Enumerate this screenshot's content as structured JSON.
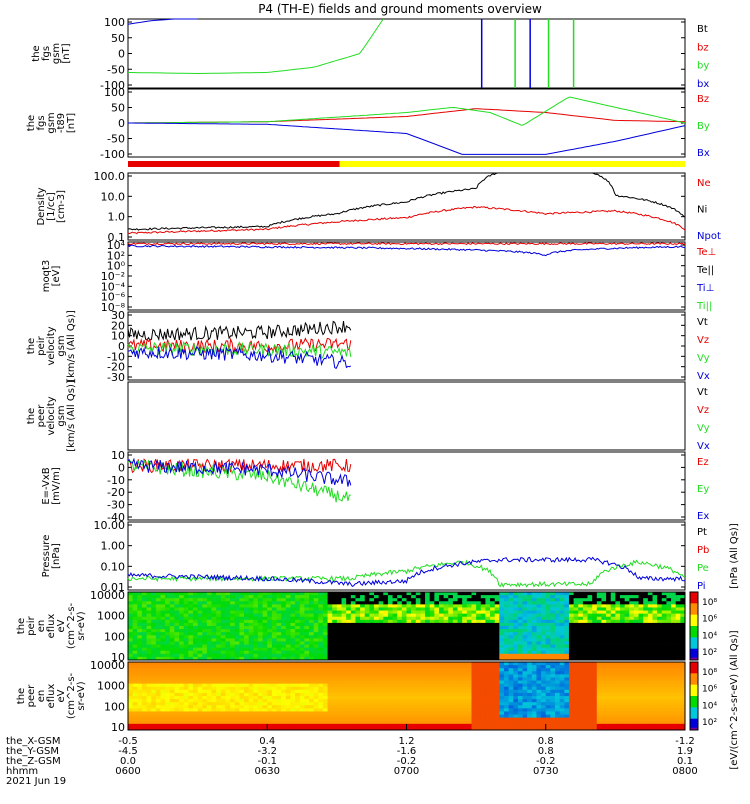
{
  "title": "P4 (TH-E) fields and ground moments overview",
  "colors": {
    "black": "#000000",
    "red": "#e60000",
    "green": "#22dd22",
    "blue": "#0000dd",
    "yellow": "#ffff00"
  },
  "panels": [
    {
      "id": "fgs",
      "ylabel_lines": [
        "the",
        "fgs",
        "gsm",
        "[nT]"
      ],
      "ticks": [
        "100",
        "50",
        "0",
        "-50",
        "-100"
      ],
      "legend": [
        {
          "text": "Bt",
          "color": "#000000"
        },
        {
          "text": "bz",
          "color": "#e60000"
        },
        {
          "text": "by",
          "color": "#22dd22"
        },
        {
          "text": "bx",
          "color": "#0000dd"
        }
      ]
    },
    {
      "id": "t89",
      "ylabel_lines": [
        "the",
        "fgs",
        "gsm",
        "-t89",
        "[nT]"
      ],
      "ticks": [
        "100",
        "50",
        "0",
        "-50",
        "-100"
      ],
      "legend": [
        {
          "text": "Bz",
          "color": "#e60000"
        },
        {
          "text": "By",
          "color": "#22dd22"
        },
        {
          "text": "Bx",
          "color": "#0000dd"
        }
      ]
    },
    {
      "id": "density",
      "ylabel_lines": [
        "Density",
        "[1/cc]",
        "[cm-3]"
      ],
      "ticks": [
        "100.0",
        "10.0",
        "1.0",
        "0.1"
      ],
      "legend": [
        {
          "text": "Ne",
          "color": "#e60000"
        },
        {
          "text": "Ni",
          "color": "#000000"
        },
        {
          "text": "Npot",
          "color": "#0000dd"
        }
      ]
    },
    {
      "id": "temperature",
      "ylabel_lines": [
        "moqt3",
        "[eV]"
      ],
      "ticks": [
        "10⁴",
        "10²",
        "10⁰",
        "10⁻²",
        "10⁻⁴",
        "10⁻⁶",
        "10⁻⁸"
      ],
      "legend": [
        {
          "text": "Te⊥",
          "color": "#e60000"
        },
        {
          "text": "Te||",
          "color": "#000000"
        },
        {
          "text": "Ti⊥",
          "color": "#0000dd"
        },
        {
          "text": "Ti||",
          "color": "#22dd22"
        }
      ]
    },
    {
      "id": "vi",
      "ylabel_lines": [
        "the",
        "peir",
        "velocity",
        "gsm",
        "[km/s (All Qs)]"
      ],
      "ticks": [
        "30",
        "20",
        "10",
        "0",
        "-10",
        "-20",
        "-30"
      ],
      "legend": [
        {
          "text": "Vt",
          "color": "#000000"
        },
        {
          "text": "Vz",
          "color": "#e60000"
        },
        {
          "text": "Vy",
          "color": "#22dd22"
        },
        {
          "text": "Vx",
          "color": "#0000dd"
        }
      ]
    },
    {
      "id": "ve",
      "ylabel_lines": [
        "the",
        "peer",
        "velocity",
        "gsm",
        "[km/s (All Qs)]"
      ],
      "ticks": [],
      "legend": [
        {
          "text": "Vt",
          "color": "#000000"
        },
        {
          "text": "Vz",
          "color": "#e60000"
        },
        {
          "text": "Vy",
          "color": "#22dd22"
        },
        {
          "text": "Vx",
          "color": "#0000dd"
        }
      ]
    },
    {
      "id": "efield",
      "ylabel_lines": [
        "E=-VxB",
        "[mV/m]"
      ],
      "ticks": [
        "10",
        "0",
        "-10",
        "-20",
        "-30",
        "-40"
      ],
      "legend": [
        {
          "text": "Ez",
          "color": "#e60000"
        },
        {
          "text": "Ey",
          "color": "#22dd22"
        },
        {
          "text": "Ex",
          "color": "#0000dd"
        }
      ]
    },
    {
      "id": "pressure",
      "ylabel_lines": [
        "Pressure",
        "[nPa]"
      ],
      "ticks": [
        "10.00",
        "1.00",
        "0.10",
        "0.01"
      ],
      "legend": [
        {
          "text": "Pt",
          "color": "#000000"
        },
        {
          "text": "Pb",
          "color": "#e60000"
        },
        {
          "text": "Pe",
          "color": "#22dd22"
        },
        {
          "text": "Pi",
          "color": "#0000dd"
        }
      ],
      "legend_unit": "[nPa (All Qs)]"
    },
    {
      "id": "ion_spec",
      "ylabel_lines": [
        "the",
        "peir",
        "en",
        "eflux",
        "eV",
        "(cm^2-s-",
        "sr-eV)"
      ],
      "ticks": [
        "10000",
        "1000",
        "100",
        "10"
      ],
      "legend": []
    },
    {
      "id": "elec_spec",
      "ylabel_lines": [
        "the",
        "peer",
        "en",
        "eflux",
        "eV",
        "(cm^2-s-",
        "sr-eV)"
      ],
      "ticks": [
        "10000",
        "1000",
        "100",
        "10"
      ],
      "legend": []
    }
  ],
  "colorbar": {
    "label": "[eV/(cm^2-s-sr-eV) (All Qs)]",
    "top_ticks": [
      "10⁸",
      "10⁶",
      "10⁴",
      "10²"
    ],
    "bottom_ticks": [
      "10⁸",
      "10⁶",
      "10⁴",
      "10²"
    ]
  },
  "status_bar_colors": [
    "#e60000",
    "#ffff00"
  ],
  "x_axis": {
    "rows": [
      {
        "label": "the_X-GSM",
        "values": [
          "-0.5",
          "0.4",
          "1.2",
          "0.8",
          "-1.2"
        ]
      },
      {
        "label": "the_Y-GSM",
        "values": [
          "-4.5",
          "-3.2",
          "-1.6",
          "0.8",
          "1.9"
        ]
      },
      {
        "label": "the_Z-GSM",
        "values": [
          "0.0",
          "-0.1",
          "-0.2",
          "-0.2",
          "0.1"
        ]
      },
      {
        "label": "hhmm",
        "values": [
          "0600",
          "0630",
          "0700",
          "0730",
          "0800"
        ]
      }
    ],
    "date": "2021 Jun 19"
  },
  "chart_data": {
    "type": "line",
    "title": "P4 (TH-E) fields and ground moments overview",
    "x": [
      "0600",
      "0630",
      "0700",
      "0730",
      "0800"
    ],
    "xlabel": "hhmm",
    "date": "2021 Jun 19",
    "ephemeris": {
      "the_X-GSM": [
        -0.5,
        0.4,
        1.2,
        0.8,
        -1.2
      ],
      "the_Y-GSM": [
        -4.5,
        -3.2,
        -1.6,
        0.8,
        1.9
      ],
      "the_Z-GSM": [
        0.0,
        -0.1,
        -0.2,
        -0.2,
        0.1
      ]
    },
    "panels": [
      {
        "name": "the fgs gsm [nT]",
        "ylim": [
          -100,
          100
        ],
        "series": [
          {
            "name": "bx",
            "color": "#0000dd",
            "x": [
              "0600",
              "0605",
              "0610",
              "0615"
            ],
            "values": [
              85,
              95,
              100,
              100
            ]
          },
          {
            "name": "by",
            "color": "#22dd22",
            "x": [
              "0600",
              "0615",
              "0630",
              "0640",
              "0650",
              "0655"
            ],
            "values": [
              -55,
              -58,
              -55,
              -40,
              0,
              100
            ]
          }
        ]
      },
      {
        "name": "the fgs gsm -t89 [nT]",
        "ylim": [
          -130,
          130
        ],
        "series": [
          {
            "name": "Bz",
            "color": "#e60000",
            "x": [
              "0600",
              "0630",
              "0700",
              "0715",
              "0730",
              "0745",
              "0800"
            ],
            "values": [
              0,
              5,
              25,
              55,
              40,
              10,
              5
            ]
          },
          {
            "name": "By",
            "color": "#22dd22",
            "x": [
              "0600",
              "0630",
              "0700",
              "0710",
              "0718",
              "0725",
              "0735",
              "0800"
            ],
            "values": [
              0,
              5,
              40,
              60,
              40,
              -10,
              100,
              0
            ]
          },
          {
            "name": "Bx",
            "color": "#0000dd",
            "x": [
              "0600",
              "0630",
              "0700",
              "0712",
              "0730",
              "0745",
              "0800"
            ],
            "values": [
              0,
              -5,
              -40,
              -120,
              -120,
              -70,
              -10
            ]
          }
        ]
      },
      {
        "name": "Density [1/cc]",
        "scale": "log",
        "ylim": [
          0.1,
          100
        ],
        "series": [
          {
            "name": "Ne",
            "color": "#e60000",
            "x": [
              "0600",
              "0630",
              "0700",
              "0715",
              "0730",
              "0745",
              "0800"
            ],
            "values": [
              0.2,
              0.3,
              1.0,
              3.0,
              1.5,
              2.0,
              0.3
            ]
          },
          {
            "name": "Ni",
            "color": "#000000",
            "x": [
              "0600",
              "0630",
              "0645",
              "0700",
              "0715",
              "0722",
              "0738",
              "0745",
              "0800"
            ],
            "values": [
              0.3,
              0.4,
              1.5,
              5,
              20,
              150,
              150,
              10,
              1
            ]
          }
        ]
      },
      {
        "name": "moqt3 [eV]",
        "scale": "log",
        "ylim": [
          1e-08,
          10000.0
        ],
        "series": [
          {
            "name": "Te⊥",
            "color": "#e60000",
            "x": [
              "0600",
              "0730",
              "0800"
            ],
            "values": [
              5000,
              5000,
              5000
            ]
          },
          {
            "name": "Ti⊥",
            "color": "#0000dd",
            "x": [
              "0600",
              "0730",
              "0800"
            ],
            "values": [
              2000,
              50,
              1500
            ]
          }
        ]
      },
      {
        "name": "the peir velocity gsm [km/s (All Qs)]",
        "ylim": [
          -30,
          30
        ],
        "series": [
          {
            "name": "Vt",
            "color": "#000000",
            "x": [
              "0600",
              "0630",
              "0648"
            ],
            "values": [
              10,
              12,
              18
            ]
          },
          {
            "name": "Vz",
            "color": "#e60000",
            "x": [
              "0600",
              "0630",
              "0648"
            ],
            "values": [
              0,
              0,
              2
            ]
          },
          {
            "name": "Vy",
            "color": "#22dd22",
            "x": [
              "0600",
              "0630",
              "0648"
            ],
            "values": [
              -2,
              -3,
              -6
            ]
          },
          {
            "name": "Vx",
            "color": "#0000dd",
            "x": [
              "0600",
              "0630",
              "0648"
            ],
            "values": [
              -5,
              -8,
              -15
            ]
          }
        ]
      },
      {
        "name": "E=-VxB [mV/m]",
        "ylim": [
          -40,
          10
        ],
        "series": [
          {
            "name": "Ez",
            "color": "#e60000",
            "x": [
              "0600",
              "0630",
              "0648"
            ],
            "values": [
              0,
              0,
              0
            ]
          },
          {
            "name": "Ey",
            "color": "#22dd22",
            "x": [
              "0600",
              "0630",
              "0648"
            ],
            "values": [
              0,
              -8,
              -25
            ]
          },
          {
            "name": "Ex",
            "color": "#0000dd",
            "x": [
              "0600",
              "0630",
              "0648"
            ],
            "values": [
              0,
              -3,
              -12
            ]
          }
        ]
      },
      {
        "name": "Pressure [nPa]",
        "scale": "log",
        "ylim": [
          0.005,
          20
        ],
        "series": [
          {
            "name": "Pe",
            "color": "#22dd22",
            "x": [
              "0600",
              "0630",
              "0648",
              "0700",
              "0712",
              "0720",
              "0740",
              "0750",
              "0800"
            ],
            "values": [
              0.02,
              0.02,
              0.02,
              0.05,
              0.15,
              0.01,
              0.01,
              0.15,
              0.02
            ]
          },
          {
            "name": "Pi",
            "color": "#0000dd",
            "x": [
              "0600",
              "0630",
              "0648",
              "0700",
              "0720",
              "0740",
              "0750",
              "0800"
            ],
            "values": [
              0.03,
              0.02,
              0.01,
              0.015,
              0.2,
              0.2,
              0.02,
              0.02
            ]
          }
        ]
      }
    ]
  }
}
